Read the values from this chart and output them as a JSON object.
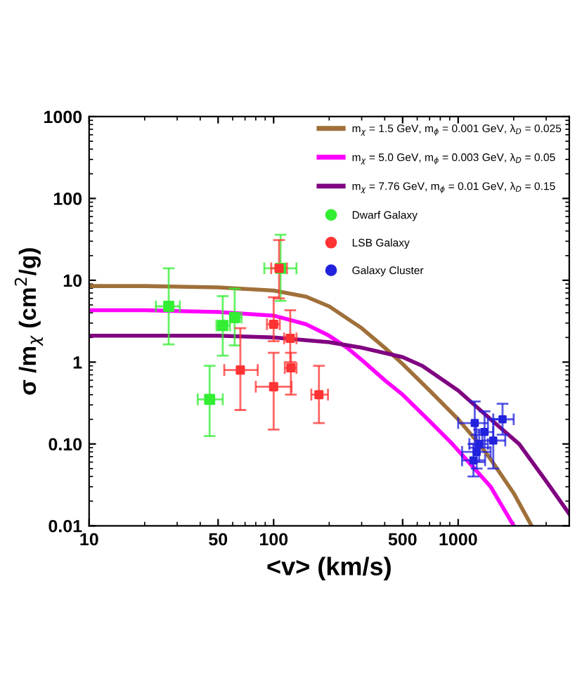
{
  "chart_data": {
    "type": "line",
    "xlabel": "<v> (km/s)",
    "ylabel": "σ /m$_{χ}$ (cm$^{2}$/g)",
    "log": "xy",
    "xlim": [
      10,
      4000
    ],
    "ylim": [
      0.01,
      1000
    ],
    "xticks": [
      10,
      50,
      100,
      500,
      1000
    ],
    "yticks": [
      0.01,
      {
        "value": 0.1,
        "label": "0.10"
      },
      1,
      10,
      100,
      1000
    ],
    "legend": "top right",
    "grid": false,
    "series": [
      {
        "name": "m$_{χ}$ = 1.5 GeV, m$_{ϕ}$ = 0.001 GeV, λ$_{D}$ = 0.025",
        "color": "#a0703a",
        "line_style": "solid",
        "x": [
          10,
          20,
          50,
          100,
          150,
          200,
          300,
          400,
          500,
          700,
          1000,
          1300,
          1500,
          2000,
          2500
        ],
        "values": [
          8.5,
          8.5,
          8.2,
          7.5,
          6.3,
          4.8,
          2.6,
          1.5,
          0.95,
          0.45,
          0.2,
          0.1,
          0.065,
          0.025,
          0.01
        ]
      },
      {
        "name": "m$_{χ}$ = 5.0 GeV, m$_{ϕ}$ = 0.003 GeV, λ$_{D}$ = 0.05",
        "color": "#ff00ff",
        "line_style": "solid",
        "x": [
          10,
          20,
          50,
          100,
          150,
          200,
          250,
          310,
          400,
          500,
          700,
          930,
          1500,
          2000
        ],
        "values": [
          4.3,
          4.3,
          4.1,
          3.7,
          2.9,
          2.1,
          1.5,
          1.0,
          0.6,
          0.4,
          0.19,
          0.1,
          0.03,
          0.01
        ]
      },
      {
        "name": "m$_{χ}$ = 7.76 GeV, m$_{ϕ}$ = 0.01 GeV, λ$_{D}$ = 0.15",
        "color": "#800080",
        "line_style": "solid",
        "x": [
          10,
          20,
          50,
          100,
          200,
          300,
          500,
          640,
          1000,
          1500,
          2140,
          3000,
          4000
        ],
        "values": [
          2.1,
          2.1,
          2.1,
          2.0,
          1.75,
          1.5,
          1.15,
          0.9,
          0.45,
          0.2,
          0.1,
          0.035,
          0.014
        ]
      },
      {
        "name": "Dwarf Galaxy",
        "color": "#33ee33",
        "type": "scatter",
        "marker": "square",
        "x": [
          27,
          53,
          61.5,
          45,
          109
        ],
        "values": [
          4.8,
          2.8,
          3.5,
          0.35,
          14
        ],
        "errors": [
          [
            1.65,
            14
          ],
          [
            1.2,
            6.4
          ],
          [
            1.6,
            7.9
          ],
          [
            0.125,
            0.9
          ],
          [
            5.6,
            36
          ]
        ],
        "xerrors": [
          [
            23,
            31
          ],
          [
            49,
            58
          ],
          [
            58,
            67
          ],
          [
            38.8,
            53
          ],
          [
            89,
            133
          ]
        ]
      },
      {
        "name": "LSB Galaxy",
        "color": "#ff3333",
        "type": "scatter",
        "marker": "square",
        "x": [
          107,
          100,
          123,
          66,
          100,
          124,
          176
        ],
        "values": [
          14,
          2.9,
          1.95,
          0.8,
          0.5,
          0.85,
          0.4
        ],
        "errors": [
          [
            6,
            31
          ],
          [
            1.8,
            6.2
          ],
          [
            1.0,
            4.3
          ],
          [
            0.26,
            2.6
          ],
          [
            0.15,
            1.3
          ],
          [
            0.4,
            1.3
          ],
          [
            0.18,
            0.9
          ]
        ],
        "xerrors": [
          [
            97,
            118
          ],
          [
            92,
            108
          ],
          [
            114,
            133
          ],
          [
            54,
            82
          ],
          [
            80,
            125
          ],
          [
            115,
            133
          ],
          [
            160,
            197
          ]
        ]
      },
      {
        "name": "Galaxy Cluster",
        "color": "#2222dd",
        "type": "scatter",
        "marker": "square",
        "x": [
          1230,
          1390,
          1550,
          1740,
          1260,
          1210,
          1300
        ],
        "values": [
          0.18,
          0.14,
          0.11,
          0.2,
          0.08,
          0.063,
          0.1
        ],
        "errors": [
          [
            0.09,
            0.33
          ],
          [
            0.09,
            0.25
          ],
          [
            0.05,
            0.2
          ],
          [
            0.13,
            0.31
          ],
          [
            0.05,
            0.13
          ],
          [
            0.04,
            0.1
          ],
          [
            0.06,
            0.15
          ]
        ],
        "xerrors": [
          [
            1000,
            1450
          ],
          [
            1250,
            1550
          ],
          [
            1350,
            1800
          ],
          [
            1550,
            2000
          ],
          [
            1050,
            1500
          ],
          [
            1050,
            1400
          ],
          [
            1150,
            1450
          ]
        ]
      }
    ]
  }
}
